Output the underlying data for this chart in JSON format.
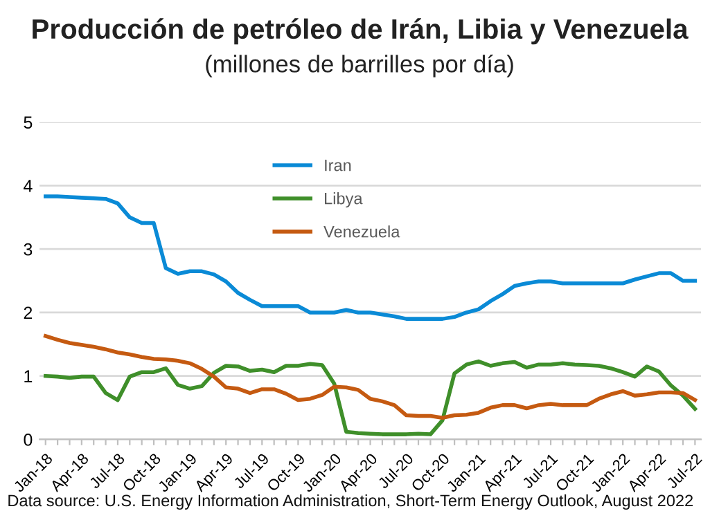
{
  "chart_data": {
    "type": "line",
    "title": "Producción de petróleo de Irán, Libia y Venezuela",
    "subtitle": "(millones de barrilles por día)",
    "categories": [
      "Jan-18",
      null,
      null,
      "Apr-18",
      null,
      null,
      "Jul-18",
      null,
      null,
      "Oct-18",
      null,
      null,
      "Jan-19",
      null,
      null,
      "Apr-19",
      null,
      null,
      "Jul-19",
      null,
      null,
      "Oct-19",
      null,
      null,
      "Jan-20",
      null,
      null,
      "Apr-20",
      null,
      null,
      "Jul-20",
      null,
      null,
      "Oct-20",
      null,
      null,
      "Jan-21",
      null,
      null,
      "Apr-21",
      null,
      null,
      "Jul-21",
      null,
      null,
      "Oct-21",
      null,
      null,
      "Jan-22",
      null,
      null,
      "Apr-22",
      null,
      null,
      "Jul-22"
    ],
    "series": [
      {
        "name": "Iran",
        "color": "#0a8ad6",
        "values": [
          3.83,
          3.83,
          3.82,
          3.81,
          3.8,
          3.79,
          3.72,
          3.5,
          3.41,
          3.41,
          2.7,
          2.61,
          2.65,
          2.65,
          2.6,
          2.49,
          2.31,
          2.2,
          2.1,
          2.1,
          2.1,
          2.1,
          2.0,
          2.0,
          2.0,
          2.04,
          2.0,
          2.0,
          1.97,
          1.94,
          1.9,
          1.9,
          1.9,
          1.9,
          1.93,
          2.0,
          2.05,
          2.18,
          2.29,
          2.42,
          2.46,
          2.49,
          2.49,
          2.46,
          2.46,
          2.46,
          2.46,
          2.46,
          2.46,
          2.52,
          2.57,
          2.62,
          2.62,
          2.5,
          2.5
        ]
      },
      {
        "name": "Libya",
        "color": "#3f8f2a",
        "values": [
          1.0,
          0.99,
          0.97,
          0.99,
          0.99,
          0.73,
          0.62,
          0.99,
          1.06,
          1.06,
          1.12,
          0.86,
          0.8,
          0.84,
          1.05,
          1.16,
          1.15,
          1.08,
          1.1,
          1.06,
          1.16,
          1.16,
          1.19,
          1.17,
          0.88,
          0.12,
          0.1,
          0.09,
          0.08,
          0.08,
          0.08,
          0.09,
          0.08,
          0.3,
          1.04,
          1.18,
          1.23,
          1.16,
          1.2,
          1.22,
          1.13,
          1.18,
          1.18,
          1.2,
          1.18,
          1.17,
          1.16,
          1.12,
          1.06,
          0.99,
          1.15,
          1.07,
          0.85,
          0.69,
          0.48
        ]
      },
      {
        "name": "Venezuela",
        "color": "#c55a11",
        "values": [
          1.63,
          1.57,
          1.52,
          1.49,
          1.46,
          1.42,
          1.37,
          1.34,
          1.3,
          1.27,
          1.26,
          1.24,
          1.2,
          1.11,
          0.99,
          0.82,
          0.8,
          0.73,
          0.79,
          0.79,
          0.72,
          0.62,
          0.64,
          0.7,
          0.83,
          0.82,
          0.78,
          0.64,
          0.6,
          0.54,
          0.38,
          0.37,
          0.37,
          0.34,
          0.38,
          0.39,
          0.42,
          0.5,
          0.54,
          0.54,
          0.49,
          0.54,
          0.56,
          0.54,
          0.54,
          0.54,
          0.64,
          0.71,
          0.76,
          0.69,
          0.71,
          0.74,
          0.74,
          0.73,
          0.62
        ]
      }
    ],
    "ylim": [
      0,
      5
    ],
    "yticks": [
      0,
      1,
      2,
      3,
      4,
      5
    ],
    "grid": "y",
    "legend": "top",
    "marker": "none",
    "line_style": "solid",
    "annotations": [
      "Data source: U.S. Energy Information Administration, Short-Term Energy Outlook, August 2022"
    ]
  }
}
